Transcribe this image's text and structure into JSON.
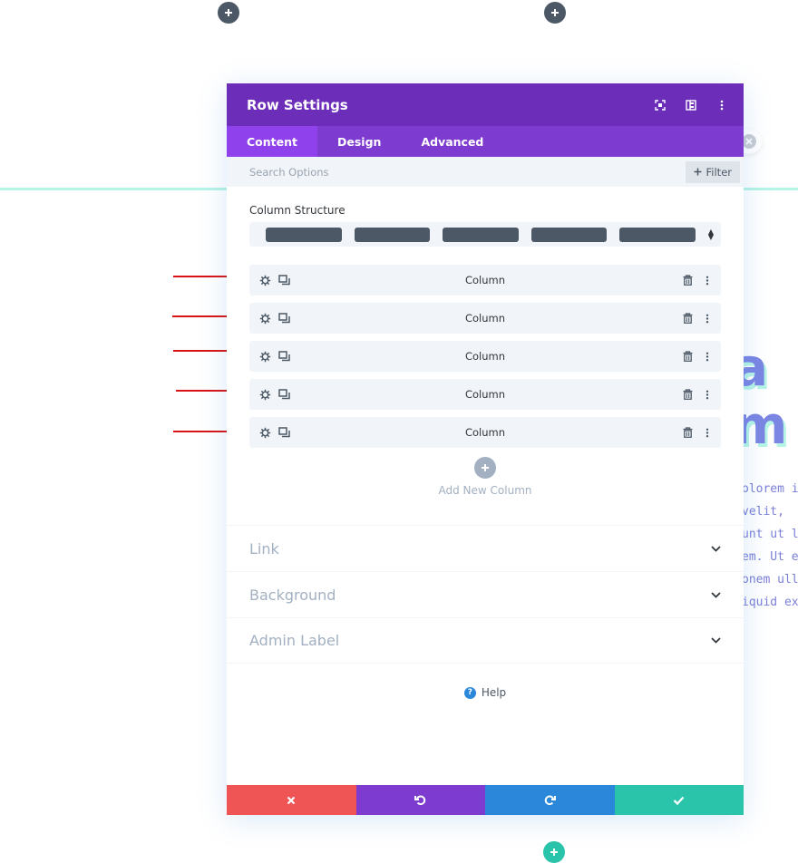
{
  "modal": {
    "title": "Row Settings",
    "header_icons": [
      "fullscreen-icon",
      "split-view-icon",
      "more-options-icon"
    ],
    "tabs": [
      {
        "label": "Content",
        "active": true
      },
      {
        "label": "Design",
        "active": false
      },
      {
        "label": "Advanced",
        "active": false
      }
    ],
    "search": {
      "placeholder": "Search Options",
      "filter_label": "Filter"
    },
    "column_structure": {
      "label": "Column Structure",
      "preview_columns": 5
    },
    "columns": [
      {
        "label": "Column"
      },
      {
        "label": "Column"
      },
      {
        "label": "Column"
      },
      {
        "label": "Column"
      },
      {
        "label": "Column"
      }
    ],
    "add_column_label": "Add New Column",
    "toggles": [
      {
        "title": "Link"
      },
      {
        "title": "Background"
      },
      {
        "title": "Admin Label"
      }
    ],
    "help_label": "Help",
    "footer": {
      "buttons": [
        "cancel",
        "undo",
        "redo",
        "save"
      ],
      "colors": {
        "cancel": "#ef5555",
        "undo": "#7e3bd0",
        "redo": "#2b87da",
        "save": "#29c4a9"
      }
    }
  },
  "background_page": {
    "big_letters": [
      "a",
      "m"
    ],
    "paragraph_fragments": [
      "olorem i",
      " velit,",
      "unt ut l",
      "em. Ut e",
      "onem ull",
      "iquid ex"
    ]
  },
  "theme": {
    "header_purple": "#6c2eb9",
    "tab_purple": "#7e3bd0",
    "active_tab_purple": "#8f42ec",
    "annotation_red": "#d91414",
    "accent_teal": "#29c4a9"
  }
}
